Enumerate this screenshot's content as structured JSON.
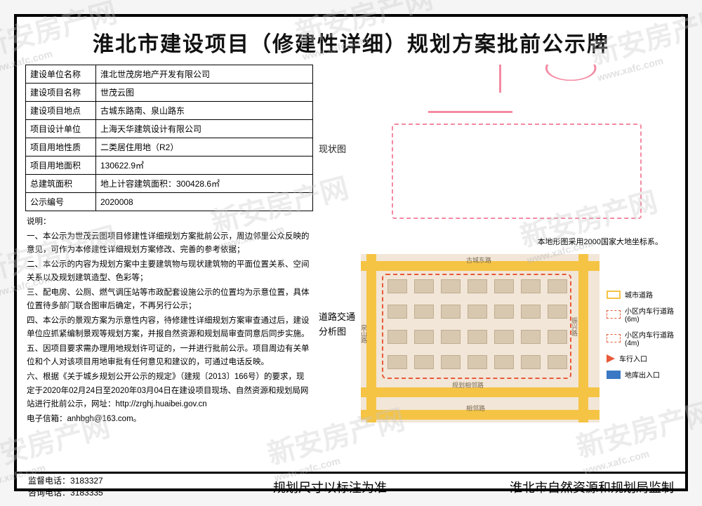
{
  "title": "淮北市建设项目（修建性详细）规划方案批前公示牌",
  "info_rows": [
    {
      "label": "建设单位名称",
      "value": "淮北世茂房地产开发有限公司"
    },
    {
      "label": "建设项目名称",
      "value": "世茂云图"
    },
    {
      "label": "建设项目地点",
      "value": "古城东路南、泉山路东"
    },
    {
      "label": "项目设计单位",
      "value": "上海天华建筑设计有限公司"
    },
    {
      "label": "项目用地性质",
      "value": "二类居住用地（R2）"
    },
    {
      "label": "项目用地面积",
      "value": "130622.9㎡"
    },
    {
      "label": "总建筑面积",
      "value": "地上计容建筑面积：300428.6㎡"
    },
    {
      "label": "公示编号",
      "value": "2020008"
    }
  ],
  "desc_heading": "说明：",
  "desc_paras": [
    "一、本公示为世茂云图项目修建性详细规划方案批前公示，周边邻里公众反映的意见，可作为本修建性详细规划方案修改、完善的参考依据；",
    "二、本公示的内容为规划方案中主要建筑物与现状建筑物的平面位置关系、空间关系以及规划建筑造型、色彩等；",
    "三、配电房、公厕、燃气调压站等市政配套设施公示的位置均为示意位置，具体位置待多部门联合图审后确定，不再另行公示；",
    "四、本公示的景观方案为示意性内容，待修建性详细规划方案审查通过后，建设单位应抓紧编制景观等规划方案，并报自然资源和规划局审查同意后同步实施。",
    "五、因项目要求需办理用地规划许可证的，一并进行批前公示。项目周边有关单位和个人对该项目用地审批有任何意见和建议的，可通过电话反映。",
    "六、根据《关于城乡规划公开公示的规定》（建规〔2013〕166号）的要求，现定于2020年02月24日至2020年03月04日在建设项目现场、自然资源和规划局网站进行批前公示，网址：http://zrghj.huaibei.gov.cn",
    "电子信箱：anhbgh@163.com。"
  ],
  "map1_label": "现状图",
  "map1_note": "本地形图采用2000国家大地坐标系。",
  "map2_label_a": "道路交通",
  "map2_label_b": "分析图",
  "road_labels": {
    "top": "古城东路",
    "left": "泉山路",
    "right": "振兴路",
    "bottom_inner": "规划相邻路",
    "bottom": "相邻路"
  },
  "legend": [
    {
      "type": "box",
      "color": "#f5c445",
      "dash": false,
      "text": "城市道路"
    },
    {
      "type": "box",
      "color": "#e85a3a",
      "dash": true,
      "text": "小区内车行道路(6m)"
    },
    {
      "type": "box",
      "color": "#e85a3a",
      "dash": true,
      "text": "小区内车行道路(4m)"
    },
    {
      "type": "tri",
      "color": "#e85a3a",
      "text": "车行入口"
    },
    {
      "type": "sq",
      "color": "#3a78c4",
      "text": "地库出入口"
    }
  ],
  "footer": {
    "phone1_label": "监督电话：",
    "phone1": "3183327",
    "phone2_label": "咨询电话：",
    "phone2": "3183335",
    "mid": "规划尺寸以标注为准",
    "right": "淮北市自然资源和规划局监制"
  },
  "watermark_main": "新安房产网",
  "watermark_url": "www.xafc.com",
  "colors": {
    "border": "#000000",
    "road_yellow": "#f5c445",
    "dash_red": "#e85a3a",
    "map_bg": "#f2e6d8",
    "pink": "#f48aa2",
    "blue": "#3a78c4"
  }
}
